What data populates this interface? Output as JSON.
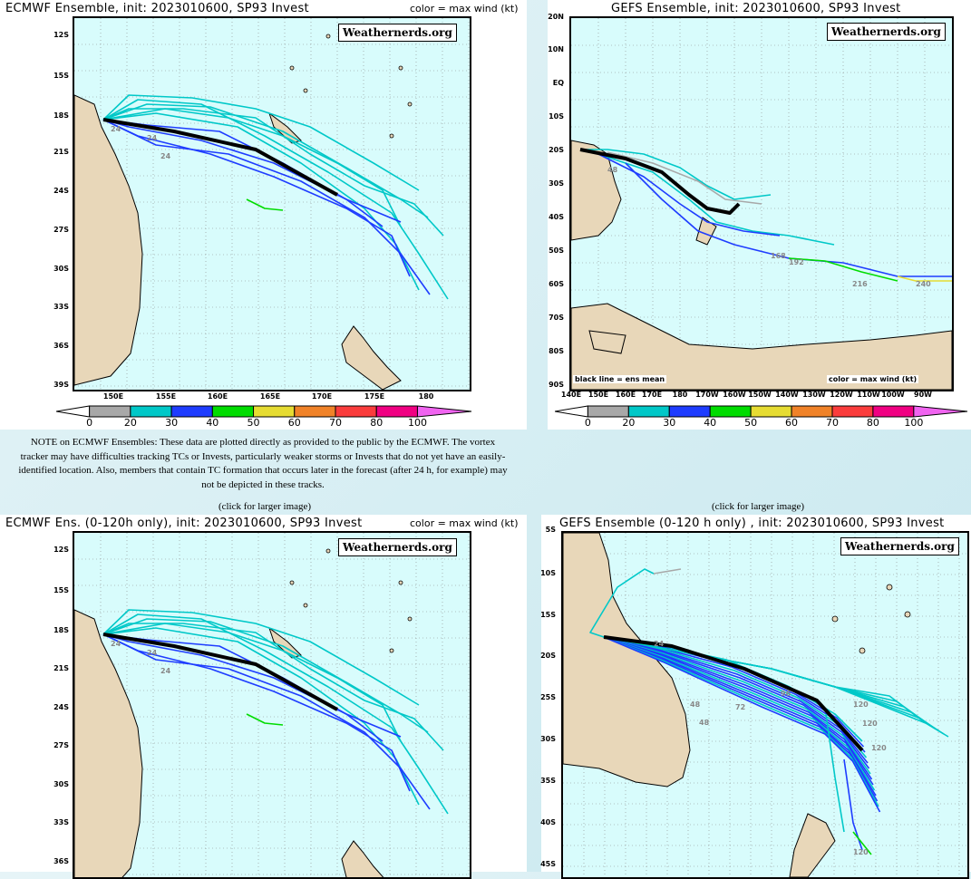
{
  "colors": {
    "ocean": "#d8fcfc",
    "land": "#e8d7b9",
    "mean": "#000000",
    "c20": "#a8a8a8",
    "c30": "#00c8c8",
    "c40": "#1e3cff",
    "c50": "#00dc00",
    "c60": "#e6dc32",
    "c70": "#f08228",
    "c80": "#fa3c3c",
    "c100": "#f00082",
    "c_over": "#f064f0"
  },
  "colorbar": {
    "ticks": [
      "0",
      "20",
      "30",
      "40",
      "50",
      "60",
      "70",
      "80",
      "100"
    ]
  },
  "brand": "Weathernerds.org",
  "legend": "color = max wind (kt)",
  "panels": [
    {
      "title": "ECMWF Ensemble, init: 2023010600, SP93 Invest",
      "lats": [
        "12S",
        "15S",
        "18S",
        "21S",
        "24S",
        "27S",
        "30S",
        "33S",
        "36S",
        "39S"
      ],
      "lons": [
        "150E",
        "155E",
        "160E",
        "165E",
        "170E",
        "175E",
        "180"
      ],
      "labels": [
        "24",
        "24",
        "24"
      ]
    },
    {
      "title": "GEFS Ensemble, init: 2023010600, SP93 Invest",
      "lats": [
        "20N",
        "10N",
        "EQ",
        "10S",
        "20S",
        "30S",
        "40S",
        "50S",
        "60S",
        "70S",
        "80S",
        "90S"
      ],
      "lons": [
        "140E",
        "150E",
        "160E",
        "170E",
        "180",
        "170W",
        "160W",
        "150W",
        "140W",
        "130W",
        "120W",
        "110W",
        "100W",
        "90W"
      ],
      "labels": [
        "168",
        "192",
        "216",
        "240",
        "48"
      ],
      "footer_left": "black line = ens mean",
      "footer_right": "color = max wind (kt)"
    },
    {
      "title": "ECMWF Ens. (0-120h only), init: 2023010600, SP93 Invest",
      "lats": [
        "12S",
        "15S",
        "18S",
        "21S",
        "24S",
        "27S",
        "30S",
        "33S",
        "36S"
      ],
      "labels": [
        "24",
        "24",
        "24"
      ]
    },
    {
      "title": "GEFS Ensemble (0-120 h only) , init: 2023010600, SP93 Invest",
      "lats": [
        "5S",
        "10S",
        "15S",
        "20S",
        "25S",
        "30S",
        "35S",
        "40S",
        "45S"
      ],
      "labels": [
        "24",
        "48",
        "48",
        "72",
        "96",
        "120",
        "120",
        "120",
        "120"
      ]
    }
  ],
  "note": "NOTE on ECMWF Ensembles: These data are plotted directly as provided to the public by the ECMWF. The vortex tracker may have difficulties tracking TCs or Invests, particularly weaker storms or Invests that do not yet have an easily-identified location. Also, members that contain TC formation that occurs later in the forecast (after 24 h, for example) may not be depicted in these tracks.",
  "click": "(click for larger image)"
}
